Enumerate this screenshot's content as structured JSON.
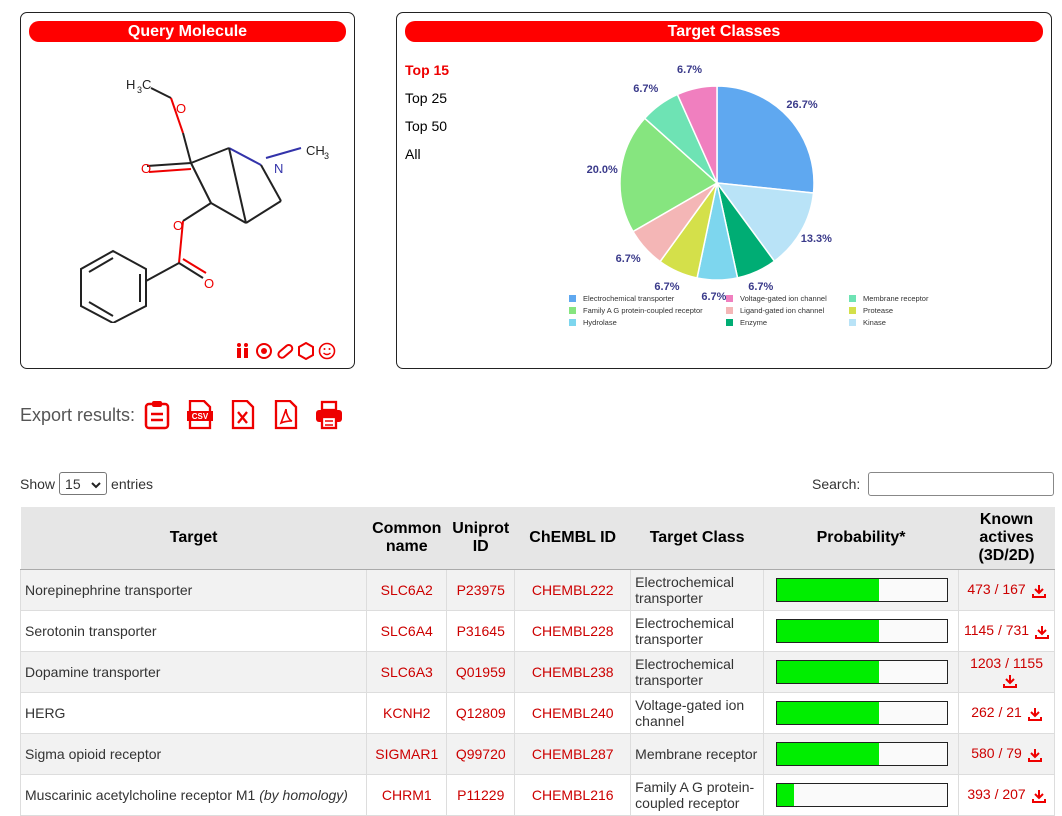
{
  "query_panel": {
    "title": "Query Molecule"
  },
  "target_panel": {
    "title": "Target Classes",
    "topn": [
      "Top 15",
      "Top 25",
      "Top 50",
      "All"
    ],
    "active": 0
  },
  "chart_data": {
    "type": "pie",
    "slices": [
      {
        "name": "Electrochemical transporter",
        "value": 26.7,
        "label": "26.7%",
        "color": "#5fa8f0"
      },
      {
        "name": "Kinase",
        "value": 13.3,
        "label": "13.3%",
        "color": "#b9e3f7"
      },
      {
        "name": "Enzyme",
        "value": 6.7,
        "label": "6.7%",
        "color": "#00ad74"
      },
      {
        "name": "Hydrolase",
        "value": 6.7,
        "label": "6.7%",
        "color": "#7dd6ee"
      },
      {
        "name": "Protease",
        "value": 6.7,
        "label": "6.7%",
        "color": "#d4e04a"
      },
      {
        "name": "Ligand-gated ion channel",
        "value": 6.7,
        "label": "6.7%",
        "color": "#f4b6b6"
      },
      {
        "name": "Family A G protein-coupled receptor",
        "value": 20.0,
        "label": "20.0%",
        "color": "#86e57f"
      },
      {
        "name": "Membrane receptor",
        "value": 6.7,
        "label": "6.7%",
        "color": "#6ee3b4"
      },
      {
        "name": "Voltage-gated ion channel",
        "value": 6.7,
        "label": "6.7%",
        "color": "#f07fbf"
      }
    ],
    "legend": [
      {
        "name": "Electrochemical transporter",
        "color": "#5fa8f0"
      },
      {
        "name": "Voltage-gated ion channel",
        "color": "#f07fbf"
      },
      {
        "name": "Membrane receptor",
        "color": "#6ee3b4"
      },
      {
        "name": "Family A G protein-coupled receptor",
        "color": "#86e57f"
      },
      {
        "name": "Ligand-gated ion channel",
        "color": "#f4b6b6"
      },
      {
        "name": "Protease",
        "color": "#d4e04a"
      },
      {
        "name": "Hydrolase",
        "color": "#7dd6ee"
      },
      {
        "name": "Enzyme",
        "color": "#00ad74"
      },
      {
        "name": "Kinase",
        "color": "#b9e3f7"
      }
    ]
  },
  "export": {
    "label": "Export results:",
    "icons": [
      "clipboard-icon",
      "csv-icon",
      "excel-icon",
      "pdf-icon",
      "print-icon"
    ]
  },
  "controls": {
    "show_label": "Show",
    "entries_value": "15",
    "entries_label": "entries",
    "search_label": "Search:"
  },
  "table": {
    "headers": [
      "Target",
      "Common name",
      "Uniprot ID",
      "ChEMBL ID",
      "Target Class",
      "Probability*",
      "Known actives (3D/2D)"
    ],
    "rows": [
      {
        "target": "Norepinephrine transporter",
        "homology": "",
        "common": "SLC6A2",
        "uniprot": "P23975",
        "chembl": "CHEMBL222",
        "tclass": "Electrochemical transporter",
        "prob": 0.6,
        "known": "473 / 167"
      },
      {
        "target": "Serotonin transporter",
        "homology": "",
        "common": "SLC6A4",
        "uniprot": "P31645",
        "chembl": "CHEMBL228",
        "tclass": "Electrochemical transporter",
        "prob": 0.6,
        "known": "1145 / 731"
      },
      {
        "target": "Dopamine transporter",
        "homology": "",
        "common": "SLC6A3",
        "uniprot": "Q01959",
        "chembl": "CHEMBL238",
        "tclass": "Electrochemical transporter",
        "prob": 0.6,
        "known": "1203 / 1155"
      },
      {
        "target": "HERG",
        "homology": "",
        "common": "KCNH2",
        "uniprot": "Q12809",
        "chembl": "CHEMBL240",
        "tclass": "Voltage-gated ion channel",
        "prob": 0.6,
        "known": "262 / 21"
      },
      {
        "target": "Sigma opioid receptor",
        "homology": "",
        "common": "SIGMAR1",
        "uniprot": "Q99720",
        "chembl": "CHEMBL287",
        "tclass": "Membrane receptor",
        "prob": 0.6,
        "known": "580 / 79"
      },
      {
        "target": "Muscarinic acetylcholine receptor M1",
        "homology": "(by homology)",
        "common": "CHRM1",
        "uniprot": "P11229",
        "chembl": "CHEMBL216",
        "tclass": "Family A G protein-coupled receptor",
        "prob": 0.1,
        "known": "393 / 207"
      }
    ]
  }
}
